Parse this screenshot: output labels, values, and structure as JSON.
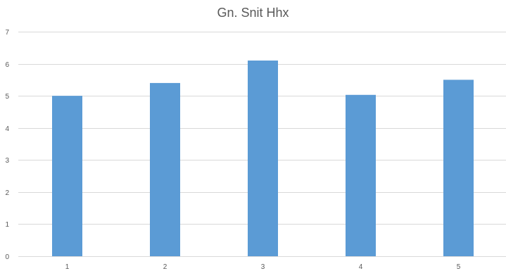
{
  "chart_data": {
    "type": "bar",
    "title": "Gn. Snit Hhx",
    "categories": [
      "1",
      "2",
      "3",
      "4",
      "5"
    ],
    "values": [
      5.0,
      5.4,
      6.1,
      5.03,
      5.5
    ],
    "ylim": [
      0,
      7
    ],
    "yticks": [
      0,
      1,
      2,
      3,
      4,
      5,
      6,
      7
    ],
    "xlabel": "",
    "ylabel": "",
    "grid": true,
    "legend": "none",
    "bar_color": "#5b9bd5"
  }
}
